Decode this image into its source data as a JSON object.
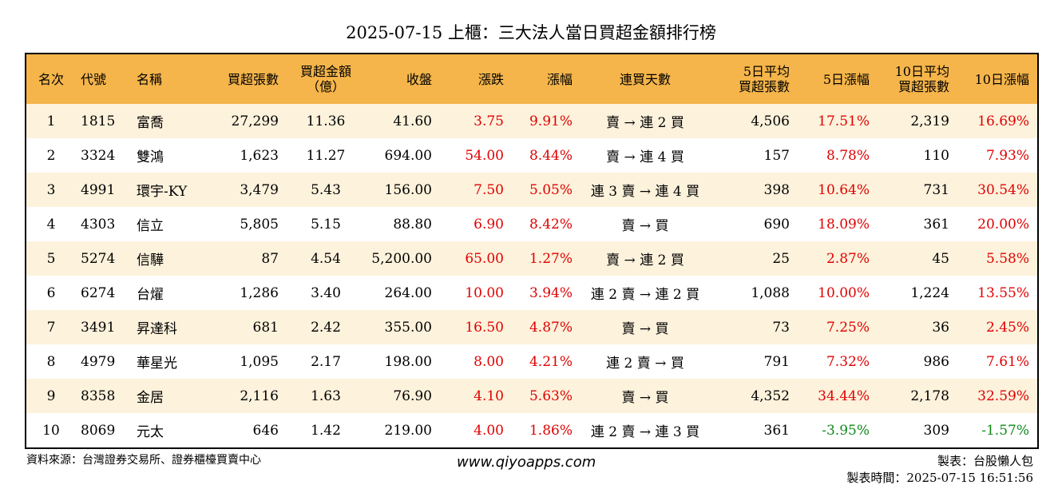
{
  "title": "2025-07-15 上櫃：三大法人當日買超金額排行榜",
  "headers": {
    "rank": "名次",
    "code": "代號",
    "name": "名稱",
    "buy_shares": "買超張數",
    "buy_amount_line1": "買超金額",
    "buy_amount_line2": "（億）",
    "close": "收盤",
    "change": "漲跌",
    "change_pct": "漲幅",
    "streak": "連買天數",
    "avg5_line1": "5日平均",
    "avg5_line2": "買超張數",
    "pct5": "5日漲幅",
    "avg10_line1": "10日平均",
    "avg10_line2": "買超張數",
    "pct10": "10日漲幅"
  },
  "rows": [
    {
      "rank": "1",
      "code": "1815",
      "name": "富喬",
      "buy_shares": "27,299",
      "buy_amount": "11.36",
      "close": "41.60",
      "change": "3.75",
      "change_pct": "9.91%",
      "streak": "賣 → 連 2 買",
      "avg5": "4,506",
      "pct5": "17.51%",
      "avg10": "2,319",
      "pct10": "16.69%"
    },
    {
      "rank": "2",
      "code": "3324",
      "name": "雙鴻",
      "buy_shares": "1,623",
      "buy_amount": "11.27",
      "close": "694.00",
      "change": "54.00",
      "change_pct": "8.44%",
      "streak": "賣 → 連 4 買",
      "avg5": "157",
      "pct5": "8.78%",
      "avg10": "110",
      "pct10": "7.93%"
    },
    {
      "rank": "3",
      "code": "4991",
      "name": "環宇-KY",
      "buy_shares": "3,479",
      "buy_amount": "5.43",
      "close": "156.00",
      "change": "7.50",
      "change_pct": "5.05%",
      "streak": "連 3 賣 → 連 4 買",
      "avg5": "398",
      "pct5": "10.64%",
      "avg10": "731",
      "pct10": "30.54%"
    },
    {
      "rank": "4",
      "code": "4303",
      "name": "信立",
      "buy_shares": "5,805",
      "buy_amount": "5.15",
      "close": "88.80",
      "change": "6.90",
      "change_pct": "8.42%",
      "streak": "賣 → 買",
      "avg5": "690",
      "pct5": "18.09%",
      "avg10": "361",
      "pct10": "20.00%"
    },
    {
      "rank": "5",
      "code": "5274",
      "name": "信驊",
      "buy_shares": "87",
      "buy_amount": "4.54",
      "close": "5,200.00",
      "change": "65.00",
      "change_pct": "1.27%",
      "streak": "賣 → 連 2 買",
      "avg5": "25",
      "pct5": "2.87%",
      "avg10": "45",
      "pct10": "5.58%"
    },
    {
      "rank": "6",
      "code": "6274",
      "name": "台燿",
      "buy_shares": "1,286",
      "buy_amount": "3.40",
      "close": "264.00",
      "change": "10.00",
      "change_pct": "3.94%",
      "streak": "連 2 賣 → 連 2 買",
      "avg5": "1,088",
      "pct5": "10.00%",
      "avg10": "1,224",
      "pct10": "13.55%"
    },
    {
      "rank": "7",
      "code": "3491",
      "name": "昇達科",
      "buy_shares": "681",
      "buy_amount": "2.42",
      "close": "355.00",
      "change": "16.50",
      "change_pct": "4.87%",
      "streak": "賣 → 買",
      "avg5": "73",
      "pct5": "7.25%",
      "avg10": "36",
      "pct10": "2.45%"
    },
    {
      "rank": "8",
      "code": "4979",
      "name": "華星光",
      "buy_shares": "1,095",
      "buy_amount": "2.17",
      "close": "198.00",
      "change": "8.00",
      "change_pct": "4.21%",
      "streak": "連 2 賣 → 買",
      "avg5": "791",
      "pct5": "7.32%",
      "avg10": "986",
      "pct10": "7.61%"
    },
    {
      "rank": "9",
      "code": "8358",
      "name": "金居",
      "buy_shares": "2,116",
      "buy_amount": "1.63",
      "close": "76.90",
      "change": "4.10",
      "change_pct": "5.63%",
      "streak": "賣 → 買",
      "avg5": "4,352",
      "pct5": "34.44%",
      "avg10": "2,178",
      "pct10": "32.59%"
    },
    {
      "rank": "10",
      "code": "8069",
      "name": "元太",
      "buy_shares": "646",
      "buy_amount": "1.42",
      "close": "219.00",
      "change": "4.00",
      "change_pct": "1.86%",
      "streak": "連 2 賣 → 連 3 買",
      "avg5": "361",
      "pct5": "-3.95%",
      "avg10": "309",
      "pct10": "-1.57%"
    }
  ],
  "footer": {
    "source": "資料來源：台灣證券交易所、證券櫃檯買賣中心",
    "site": "www.qiyoapps.com",
    "maker": "製表：台股懶人包",
    "time": "製表時間：2025-07-15 16:51:56"
  },
  "colors": {
    "header_bg": "#f5b54a",
    "stripe_bg": "#fdf2dc",
    "positive": "#e00000",
    "negative": "#118a1a"
  }
}
